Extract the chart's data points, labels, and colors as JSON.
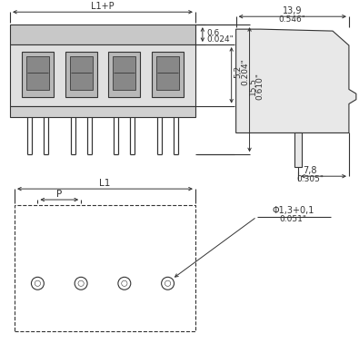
{
  "bg_color": "#ffffff",
  "line_color": "#333333",
  "annotations": {
    "L1P": "L1+P",
    "dim_06": "0,6",
    "dim_024": "0.024\"",
    "dim_52": "5,2",
    "dim_204": "0.204\"",
    "dim_155": "15,5",
    "dim_610": "0.610\"",
    "dim_139": "13,9",
    "dim_546": "0.546\"",
    "dim_78": "7,8",
    "dim_305": "0.305\"",
    "dim_phi": "Φ1,3+0,1",
    "dim_051": "0.051\"",
    "L1": "L1",
    "P": "P"
  }
}
